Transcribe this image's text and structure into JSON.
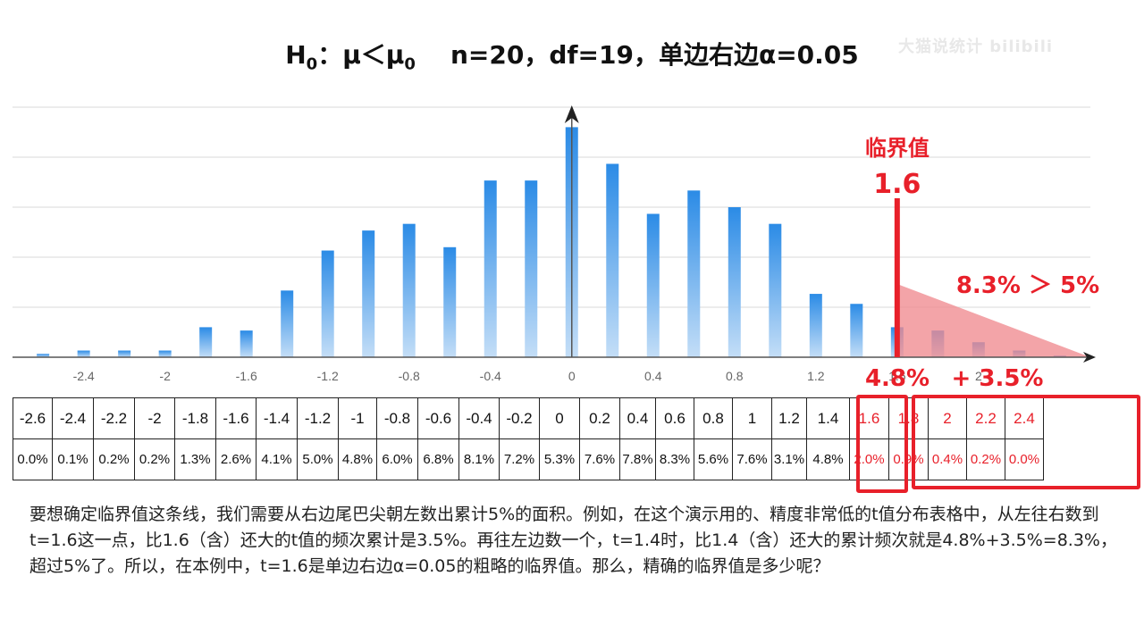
{
  "title": {
    "h": "H",
    "h_sub": "0",
    "rel": "：μ＜μ",
    "mu_sub": "0",
    "rest": "n=20，df=19，单边右边α=0.05"
  },
  "watermark": "大猫说统计 bilibili",
  "chart_data": {
    "type": "bar",
    "x": [
      -2.6,
      -2.4,
      -2.2,
      -2,
      -1.8,
      -1.6,
      -1.4,
      -1.2,
      -1,
      -0.8,
      -0.6,
      -0.4,
      -0.2,
      0,
      0.2,
      0.4,
      0.6,
      0.8,
      1,
      1.2,
      1.4,
      1.6,
      1.8,
      2,
      2.2,
      2.4
    ],
    "values": [
      0.1,
      0.2,
      0.2,
      0.2,
      0.9,
      0.8,
      2.0,
      3.2,
      3.8,
      4.0,
      3.3,
      5.3,
      5.3,
      6.9,
      5.8,
      4.3,
      5.0,
      4.5,
      4.0,
      1.9,
      1.6,
      0.9,
      0.8,
      0.45,
      0.2,
      0.05
    ],
    "xticks": [
      -2.4,
      -2,
      -1.6,
      -1.2,
      -0.8,
      -0.4,
      0,
      0.4,
      0.8,
      1.2,
      1.6,
      2
    ],
    "xtick_labels": [
      "-2.4",
      "-2",
      "-1.6",
      "-1.2",
      "-0.8",
      "-0.4",
      "0",
      "0.4",
      "0.8",
      "1.2",
      "1.6",
      "2"
    ],
    "xlim": [
      -2.75,
      2.55
    ],
    "ylim": [
      0,
      7.5
    ],
    "grid": true,
    "critical_value": 1.6,
    "annotations": {
      "critical_label": "临界值",
      "critical_value_label": "1.6",
      "compare": "8.3% ＞ 5%",
      "left_part": "4.8%",
      "plus_part": "+ 3.5%"
    },
    "colors": {
      "bar_top": "#2b8be6",
      "bar_bottom": "#bcd9f6",
      "highlight": "#e8202a",
      "tail": "#f08a8f"
    }
  },
  "table": {
    "t_values": [
      "-2.6",
      "-2.4",
      "-2.2",
      "-2",
      "-1.8",
      "-1.6",
      "-1.4",
      "-1.2",
      "-1",
      "-0.8",
      "-0.6",
      "-0.4",
      "-0.2",
      "0",
      "0.2",
      "0.4",
      "0.6",
      "0.8",
      "1",
      "1.2",
      "1.4",
      "1.6",
      "1.8",
      "2",
      "2.2",
      "2.4"
    ],
    "frequencies": [
      "0.0%",
      "0.1%",
      "0.2%",
      "0.2%",
      "1.3%",
      "2.6%",
      "4.1%",
      "5.0%",
      "4.8%",
      "6.0%",
      "6.8%",
      "8.1%",
      "7.2%",
      "5.3%",
      "7.6%",
      "7.8%",
      "8.3%",
      "5.6%",
      "7.6%",
      "3.1%",
      "4.8%",
      "2.0%",
      "0.9%",
      "0.4%",
      "0.2%",
      "0.0%"
    ],
    "red_from_index": 21
  },
  "description": "要想确定临界值这条线，我们需要从右边尾巴尖朝左数出累计5%的面积。例如，在这个演示用的、精度非常低的t值分布表格中，从左往右数到t=1.6这一点，比1.6（含）还大的t值的频次累计是3.5%。再往左边数一个，t=1.4时，比1.4（含）还大的累计频次就是4.8%+3.5%=8.3%，超过5%了。所以，在本例中，t=1.6是单边右边α=0.05的粗略的临界值。那么，精确的临界值是多少呢？"
}
